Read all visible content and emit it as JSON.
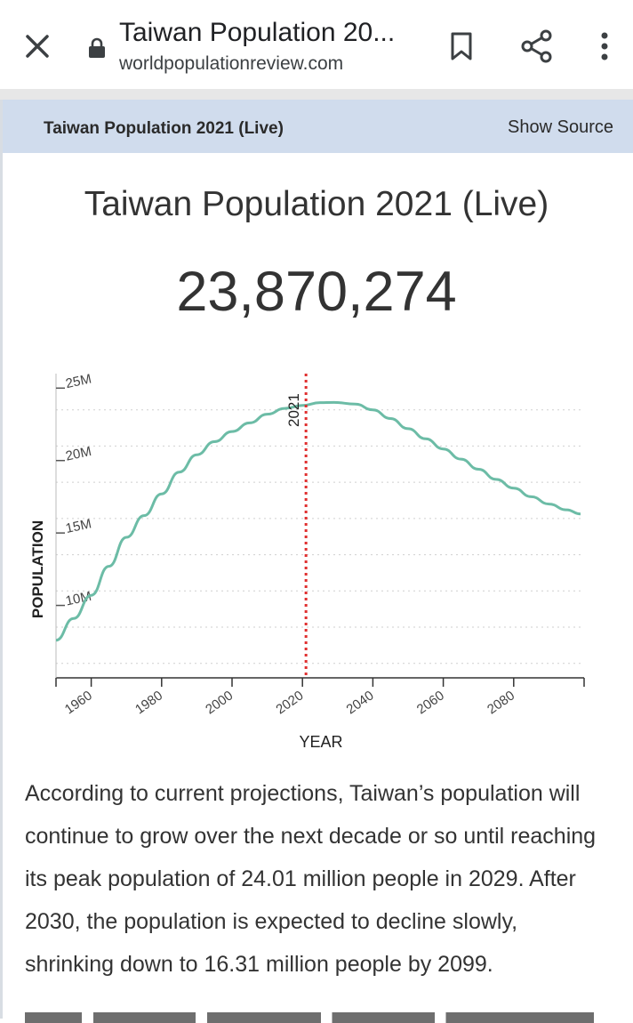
{
  "browser": {
    "page_title": "Taiwan Population 20...",
    "url": "worldpopulationreview.com"
  },
  "card": {
    "header_title": "Taiwan Population 2021 (Live)",
    "show_source": "Show Source",
    "chart_title": "Taiwan Population 2021 (Live)",
    "live_count": "23,870,274"
  },
  "chart_data": {
    "type": "line",
    "title": "",
    "xlabel": "YEAR",
    "ylabel": "POPULATION",
    "xlim": [
      1950,
      2100
    ],
    "ylim": [
      5,
      26
    ],
    "x_ticks": [
      1960,
      1980,
      2000,
      2020,
      2040,
      2060,
      2080
    ],
    "x_tick_labels": [
      "1960",
      "1980",
      "2000",
      "2020",
      "2040",
      "2060",
      "2080"
    ],
    "y_ticks": [
      10,
      15,
      20,
      25
    ],
    "y_tick_labels": [
      "10M",
      "15M",
      "20M",
      "25M"
    ],
    "grid": true,
    "line_color": "#6cbca6",
    "marker": {
      "x": 2021,
      "label": "2021",
      "color": "#e03030"
    },
    "series": [
      {
        "x": [
          1950,
          1955,
          1960,
          1965,
          1970,
          1975,
          1980,
          1985,
          1990,
          1995,
          2000,
          2005,
          2010,
          2015,
          2020,
          2025,
          2029,
          2035,
          2040,
          2045,
          2050,
          2055,
          2060,
          2065,
          2070,
          2075,
          2080,
          2085,
          2090,
          2095,
          2099
        ],
        "values": [
          7.6,
          9.1,
          10.7,
          12.7,
          14.7,
          16.2,
          17.7,
          19.2,
          20.4,
          21.3,
          22.0,
          22.6,
          23.2,
          23.6,
          23.8,
          24.0,
          24.01,
          23.9,
          23.5,
          22.9,
          22.2,
          21.5,
          20.8,
          20.1,
          19.4,
          18.7,
          18.1,
          17.5,
          17.0,
          16.6,
          16.31
        ]
      }
    ]
  },
  "article": {
    "paragraph": "According to current projections, Taiwan’s population will continue to grow over the next decade or so until reaching its peak population of 24.01 million people in 2029. After 2030, the population is expected to decline slowly, shrinking down to 16.31 million people by 2099."
  }
}
